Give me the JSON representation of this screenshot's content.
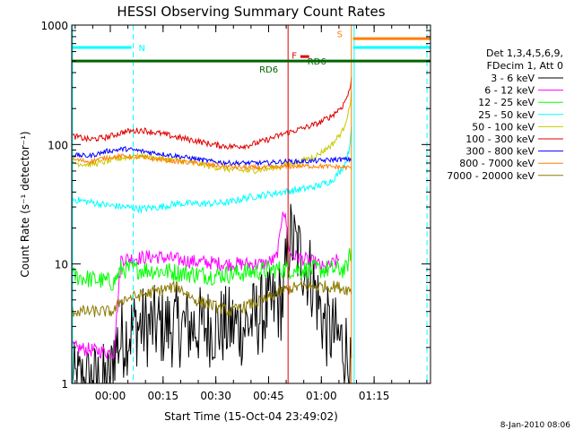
{
  "chart_data": {
    "type": "line",
    "title": "HESSI Observing Summary Count Rates",
    "xlabel": "Start Time (15-Oct-04 23:49:02)",
    "ylabel": "Count Rate (s⁻¹ detector⁻¹)",
    "y_scale": "log",
    "ylim": [
      1,
      1000
    ],
    "xlim_minutes_from_start": [
      0,
      102
    ],
    "x_ticks": [
      "00:00",
      "00:15",
      "00:30",
      "00:45",
      "01:00",
      "01:15"
    ],
    "y_ticks": [
      "1",
      "10",
      "100",
      "1000"
    ],
    "legend": {
      "header": [
        "Det 1,3,4,5,6,9,",
        "FDecim 1, Att 0"
      ],
      "position": "right"
    },
    "series": [
      {
        "name": "3 - 6 keV",
        "color": "#000000",
        "x": [
          0,
          11,
          12,
          18,
          28,
          38,
          49,
          55,
          60,
          62,
          68,
          72,
          78,
          79.5
        ],
        "values": [
          1,
          1,
          2,
          3,
          3,
          3,
          3,
          4,
          5,
          17,
          8,
          3,
          2,
          1
        ]
      },
      {
        "name": "6 - 12 keV",
        "color": "#ff00ff",
        "x": [
          0,
          12,
          14,
          24,
          34,
          44,
          55,
          58,
          59,
          60,
          61,
          62,
          66,
          70,
          72,
          76
        ],
        "values": [
          2,
          1.8,
          11,
          11.5,
          10.5,
          10,
          10,
          11,
          15,
          30,
          22,
          12,
          11,
          10,
          9,
          11
        ]
      },
      {
        "name": "12 - 25 keV",
        "color": "#00ff00",
        "x": [
          0,
          5,
          12,
          14,
          20,
          30,
          40,
          50,
          58,
          66,
          72,
          78,
          79.5
        ],
        "values": [
          8,
          7.5,
          7,
          9,
          9,
          8.5,
          8,
          8.5,
          9,
          9,
          9,
          9,
          13
        ]
      },
      {
        "name": "25 - 50 keV",
        "color": "#00ffff",
        "x": [
          0,
          5,
          10,
          15,
          20,
          25,
          30,
          35,
          40,
          45,
          50,
          55,
          60,
          65,
          70,
          74,
          76,
          78,
          79,
          79.5
        ],
        "values": [
          35,
          33,
          31,
          30,
          29,
          30,
          32,
          32,
          32,
          33,
          36,
          38,
          40,
          42,
          45,
          50,
          58,
          72,
          95,
          150
        ]
      },
      {
        "name": "50 - 100 keV",
        "color": "#c8c800",
        "x": [
          0,
          5,
          10,
          15,
          20,
          25,
          30,
          35,
          40,
          45,
          50,
          55,
          60,
          65,
          70,
          74,
          77,
          79,
          79.5
        ],
        "values": [
          70,
          68,
          72,
          78,
          80,
          76,
          74,
          70,
          65,
          62,
          60,
          62,
          66,
          72,
          82,
          100,
          130,
          200,
          280
        ]
      },
      {
        "name": "100 - 300 keV",
        "color": "#e00000",
        "x": [
          0,
          5,
          10,
          15,
          20,
          25,
          30,
          35,
          40,
          45,
          50,
          55,
          60,
          65,
          70,
          74,
          77,
          79,
          79.5
        ],
        "values": [
          118,
          110,
          115,
          128,
          132,
          124,
          115,
          108,
          100,
          96,
          98,
          108,
          122,
          135,
          150,
          175,
          210,
          280,
          360
        ]
      },
      {
        "name": "300 - 800 keV",
        "color": "#0000ff",
        "x": [
          0,
          5,
          10,
          15,
          20,
          25,
          30,
          35,
          40,
          45,
          50,
          55,
          60,
          65,
          70,
          75,
          79.5
        ],
        "values": [
          82,
          80,
          88,
          92,
          88,
          84,
          80,
          76,
          72,
          70,
          70,
          70,
          72,
          72,
          73,
          75,
          75
        ]
      },
      {
        "name": "800 - 7000 keV",
        "color": "#ff7f00",
        "x": [
          0,
          5,
          10,
          15,
          20,
          25,
          30,
          35,
          40,
          45,
          50,
          55,
          60,
          65,
          70,
          75,
          79.5
        ],
        "values": [
          75,
          72,
          78,
          80,
          78,
          75,
          72,
          70,
          67,
          65,
          64,
          64,
          65,
          66,
          66,
          65,
          64
        ]
      },
      {
        "name": "7000 - 20000 keV",
        "color": "#8b7a00",
        "x": [
          0,
          8,
          12,
          14,
          20,
          25,
          30,
          35,
          40,
          45,
          50,
          55,
          60,
          65,
          70,
          75,
          79.5
        ],
        "values": [
          4,
          4,
          4,
          5,
          5.5,
          6,
          6.5,
          5,
          4.5,
          4,
          4.5,
          5,
          6,
          6.5,
          6.5,
          6.5,
          6
        ]
      }
    ],
    "annotations": [
      {
        "label": "N",
        "color": "#00ffff"
      },
      {
        "label": "S",
        "color": "#ff7f00"
      },
      {
        "label": "F",
        "color": "#e00000"
      },
      {
        "label": "RD6",
        "color": "#006400"
      },
      {
        "label": "RD6",
        "color": "#006400"
      }
    ],
    "level_lines": [
      {
        "color": "#006400",
        "value": 500,
        "x": [
          0,
          102
        ]
      },
      {
        "color": "#00ffff",
        "value": 650,
        "x": [
          0,
          17
        ]
      },
      {
        "color": "#00ffff",
        "value": 650,
        "x": [
          80,
          102
        ]
      },
      {
        "color": "#ff7f00",
        "value": 770,
        "x": [
          80,
          102
        ]
      },
      {
        "color": "#e00000",
        "value": 545,
        "x": [
          65,
          67.5
        ]
      }
    ],
    "vertical_markers": [
      {
        "x": 17.5,
        "color": "#00ffff",
        "style": "dashed"
      },
      {
        "x": 101,
        "color": "#00ffff",
        "style": "dashed"
      },
      {
        "x": 79.5,
        "color": "#ff7f00",
        "style": "solid"
      },
      {
        "x": 80.3,
        "color": "#00ffff",
        "style": "solid"
      },
      {
        "x": 61.5,
        "color": "#e00000",
        "style": "solid"
      },
      {
        "x": 0.2,
        "color": "#00ffff",
        "style": "solid"
      }
    ],
    "footer_date": "8-Jan-2010 08:06"
  }
}
